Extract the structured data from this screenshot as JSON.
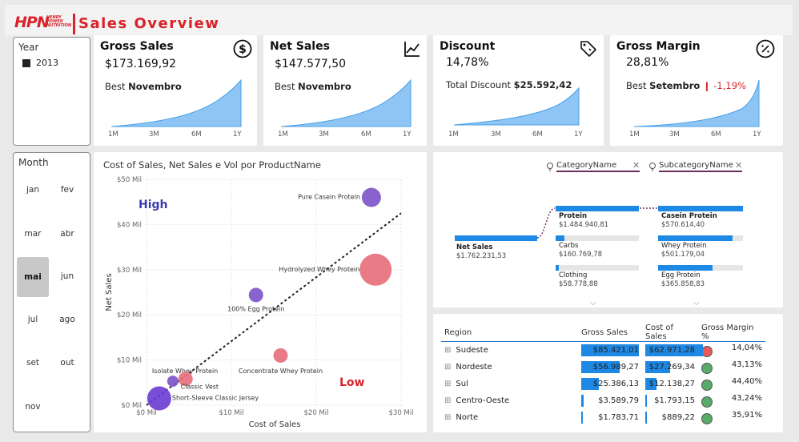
{
  "header": {
    "logo": "HPN",
    "logo_sub": [
      "HENRY",
      "POWER",
      "NUTRITION"
    ],
    "title": "Sales Overview"
  },
  "year_slicer": {
    "title": "Year",
    "selected": "2013"
  },
  "month_slicer": {
    "title": "Month",
    "months": [
      "jan",
      "fev",
      "mar",
      "abr",
      "mai",
      "jun",
      "jul",
      "ago",
      "set",
      "out",
      "nov"
    ],
    "selected": "mai"
  },
  "kpis": {
    "gross_sales": {
      "title": "Gross Sales",
      "value": "$173.169,92",
      "best_label": "Best",
      "best_month": "Novembro",
      "icon": "dollar-icon"
    },
    "net_sales": {
      "title": "Net Sales",
      "value": "$147.577,50",
      "best_label": "Best",
      "best_month": "Novembro",
      "icon": "line-chart-icon"
    },
    "discount": {
      "title": "Discount",
      "value": "14,78%",
      "total_label": "Total Discount",
      "total_value": "$25.592,42",
      "icon": "tag-icon"
    },
    "gross_margin": {
      "title": "Gross Margin",
      "value": "28,81%",
      "best_label": "Best",
      "best_month": "Setembro",
      "delta": "-1,19%",
      "icon": "percent-icon"
    },
    "spark_ticks": [
      "1M",
      "3M",
      "6M",
      "1Y"
    ]
  },
  "scatter": {
    "title": "Cost of Sales, Net Sales e Vol por ProductName",
    "high_label": "High",
    "low_label": "Low"
  },
  "chart_data": {
    "type": "scatter",
    "xlabel": "Cost of Sales",
    "ylabel": "Net Sales",
    "xlim": [
      0,
      30
    ],
    "ylim": [
      0,
      50
    ],
    "x_ticks": [
      "$0 Mil",
      "$10 Mil",
      "$20 Mil",
      "$30 Mil"
    ],
    "y_ticks": [
      "$0 Mil",
      "$10 Mil",
      "$20 Mil",
      "$30 Mil",
      "$40 Mil",
      "$50 Mil"
    ],
    "points": [
      {
        "label": "Pure Casein Protein",
        "x": 26.5,
        "y": 46,
        "size": 12,
        "color": "#7b52c9"
      },
      {
        "label": "Hydrolyzed Whey Protein",
        "x": 27,
        "y": 30,
        "size": 20,
        "color": "#e56d78"
      },
      {
        "label": "100% Egg Protein",
        "x": 12.9,
        "y": 24.4,
        "size": 9,
        "color": "#7b52c9"
      },
      {
        "label": "Concentrate Whey Protein",
        "x": 15.8,
        "y": 11,
        "size": 9,
        "color": "#e56d78"
      },
      {
        "label": "Isolate Whey Protein",
        "x": 3.1,
        "y": 5.3,
        "size": 7,
        "color": "#7b52c9"
      },
      {
        "label": "Classic Vest",
        "x": 4.6,
        "y": 5.8,
        "size": 9,
        "color": "#e56d78"
      },
      {
        "label": "Short-Sleeve Classic Jersey",
        "x": 1.5,
        "y": 1.5,
        "size": 15,
        "color": "#6a3bd1"
      }
    ],
    "trendline": {
      "x": [
        0,
        30
      ],
      "y": [
        0,
        42.5
      ]
    }
  },
  "tree": {
    "fields": [
      "CategoryName",
      "SubcategoryName"
    ],
    "root": {
      "label": "Net Sales",
      "value": "$1.762.231,53"
    },
    "categories": [
      {
        "label": "Protein",
        "value": "$1.484.940,81",
        "share": 1.0,
        "bold": true
      },
      {
        "label": "Carbs",
        "value": "$160.769,78",
        "share": 0.11,
        "bold": false
      },
      {
        "label": "Clothing",
        "value": "$58.778,88",
        "share": 0.04,
        "bold": false
      }
    ],
    "subcategories": [
      {
        "label": "Casein Protein",
        "value": "$570.614,40",
        "share": 1.0,
        "bold": true
      },
      {
        "label": "Whey Protein",
        "value": "$501.179,04",
        "share": 0.88,
        "bold": false
      },
      {
        "label": "Egg Protein",
        "value": "$365.858,83",
        "share": 0.64,
        "bold": false
      }
    ]
  },
  "region_table": {
    "headers": [
      "Region",
      "Gross Sales",
      "Cost of Sales",
      "Gross Margin %"
    ],
    "rows": [
      {
        "region": "Sudeste",
        "gross": "$85.421,01",
        "gross_share": 1.0,
        "cost": "$62.971,28",
        "cost_share": 1.0,
        "margin": "14,04%",
        "status": "#e85a5a"
      },
      {
        "region": "Nordeste",
        "gross": "$56.989,27",
        "gross_share": 0.67,
        "cost": "$27.269,34",
        "cost_share": 0.43,
        "margin": "43,13%",
        "status": "#5aaa6a"
      },
      {
        "region": "Sul",
        "gross": "$25.386,13",
        "gross_share": 0.3,
        "cost": "$12.138,27",
        "cost_share": 0.19,
        "margin": "44,40%",
        "status": "#5aaa6a"
      },
      {
        "region": "Centro-Oeste",
        "gross": "$3.589,79",
        "gross_share": 0.04,
        "cost": "$1.793,15",
        "cost_share": 0.03,
        "margin": "43,24%",
        "status": "#5aaa6a"
      },
      {
        "region": "Norte",
        "gross": "$1.783,71",
        "gross_share": 0.02,
        "cost": "$889,22",
        "cost_share": 0.015,
        "margin": "35,91%",
        "status": "#5aaa6a"
      }
    ]
  }
}
